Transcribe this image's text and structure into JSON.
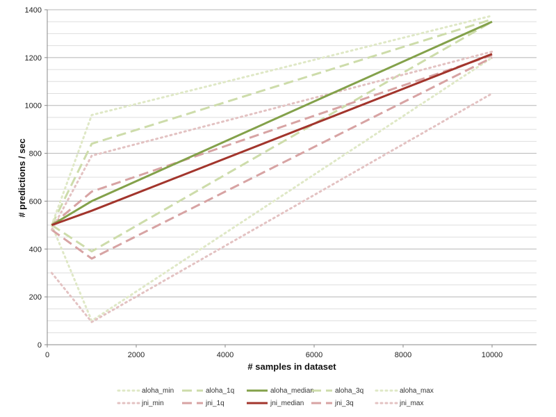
{
  "chart_data": {
    "type": "line",
    "xlabel": "# samples in dataset",
    "ylabel": "# predictions / sec",
    "xlim": [
      0,
      11000
    ],
    "ylim": [
      0,
      1400
    ],
    "x_ticks": [
      0,
      2000,
      4000,
      6000,
      8000,
      10000
    ],
    "y_ticks": [
      0,
      200,
      400,
      600,
      800,
      1000,
      1200,
      1400
    ],
    "y_minor_step": 50,
    "grid": "horizontal",
    "legend_position": "bottom",
    "series": [
      {
        "name": "aloha_min",
        "x": [
          100,
          1000,
          10000
        ],
        "values": [
          500,
          100,
          1200
        ],
        "color": "#dfe8c6",
        "style": "dotted",
        "width": 3
      },
      {
        "name": "aloha_1q",
        "x": [
          100,
          1000,
          10000
        ],
        "values": [
          500,
          390,
          1350
        ],
        "color": "#cddcaa",
        "style": "dashed",
        "width": 3
      },
      {
        "name": "aloha_median",
        "x": [
          100,
          1000,
          10000
        ],
        "values": [
          500,
          600,
          1350
        ],
        "color": "#83a14a",
        "style": "solid",
        "width": 3
      },
      {
        "name": "aloha_3q",
        "x": [
          100,
          1000,
          10000
        ],
        "values": [
          500,
          840,
          1360
        ],
        "color": "#cddcaa",
        "style": "dashed",
        "width": 3
      },
      {
        "name": "aloha_max",
        "x": [
          100,
          1000,
          10000
        ],
        "values": [
          500,
          960,
          1375
        ],
        "color": "#dfe8c6",
        "style": "dotted",
        "width": 3
      },
      {
        "name": "jni_min",
        "x": [
          100,
          1000,
          10000
        ],
        "values": [
          300,
          95,
          1050
        ],
        "color": "#e3c2c2",
        "style": "dotted",
        "width": 3
      },
      {
        "name": "jni_1q",
        "x": [
          100,
          1000,
          10000
        ],
        "values": [
          480,
          360,
          1200
        ],
        "color": "#d7a3a3",
        "style": "dashed",
        "width": 3
      },
      {
        "name": "jni_median",
        "x": [
          100,
          1000,
          10000
        ],
        "values": [
          500,
          560,
          1215
        ],
        "color": "#a2352c",
        "style": "solid",
        "width": 3
      },
      {
        "name": "jni_3q",
        "x": [
          100,
          1000,
          10000
        ],
        "values": [
          500,
          640,
          1210
        ],
        "color": "#d7a3a3",
        "style": "dashed",
        "width": 3
      },
      {
        "name": "jni_max",
        "x": [
          100,
          1000,
          10000
        ],
        "values": [
          480,
          790,
          1225
        ],
        "color": "#e3c2c2",
        "style": "dotted",
        "width": 3
      }
    ]
  }
}
